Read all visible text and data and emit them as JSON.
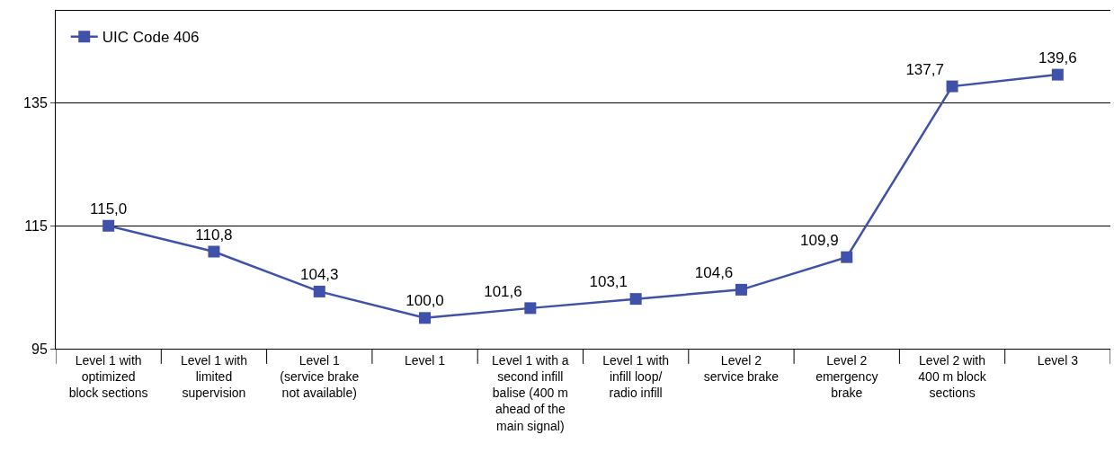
{
  "chart_data": {
    "type": "line",
    "categories": [
      "Level 1 with optimized block sections",
      "Level 1 with limited supervision",
      "Level 1 (service brake not available)",
      "Level 1",
      "Level 1 with a second infill balise (400 m ahead of the main signal)",
      "Level 1 with infill loop/ radio infill",
      "Level 2 service brake",
      "Level 2 emergency brake",
      "Level 2 with 400 m block sections",
      "Level 3"
    ],
    "series": [
      {
        "name": "UIC Code 406",
        "color": "#3f51a8",
        "values": [
          115.0,
          110.8,
          104.3,
          100.0,
          101.6,
          103.1,
          104.6,
          109.9,
          137.7,
          139.6
        ],
        "value_labels": [
          "115,0",
          "110,8",
          "104,3",
          "100,0",
          "101,6",
          "103,1",
          "104,6",
          "109,9",
          "137,7",
          "139,6"
        ]
      }
    ],
    "ylim": [
      95,
      150
    ],
    "yticks": [
      95,
      115,
      135
    ],
    "grid": "y",
    "legend": "top left",
    "marker": "square",
    "line_style": "solid"
  }
}
